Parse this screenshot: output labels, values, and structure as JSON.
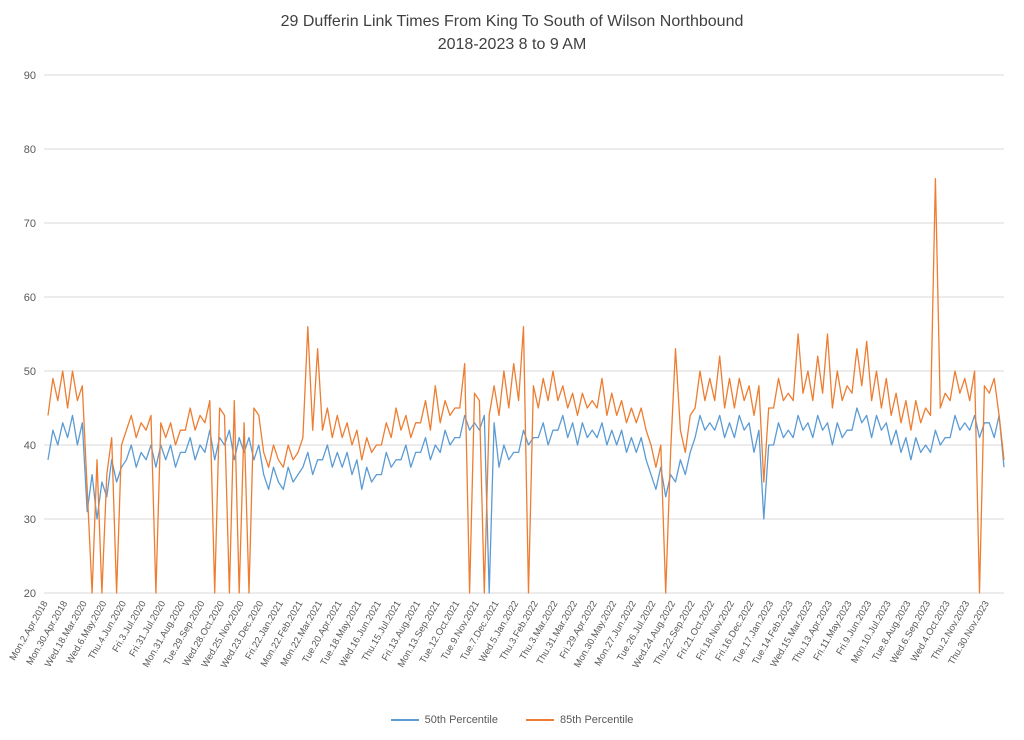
{
  "title": {
    "line1": "29 Dufferin Link Times From King To South of Wilson Northbound",
    "line2": "2018-2023 8 to 9 AM"
  },
  "legend": {
    "items": [
      {
        "label": "50th Percentile",
        "color": "#5B9BD5"
      },
      {
        "label": "85th Percentile",
        "color": "#ED7D31"
      }
    ]
  },
  "chart_data": {
    "type": "line",
    "title": "29 Dufferin Link Times From King To South of Wilson Northbound",
    "subtitle": "2018-2023 8 to 9 AM",
    "xlabel": "",
    "ylabel": "",
    "ylim": [
      20,
      90
    ],
    "yticks": [
      20,
      30,
      40,
      50,
      60,
      70,
      80,
      90
    ],
    "grid": true,
    "legend_position": "bottom",
    "points_per_tick": 4,
    "tick_labels": [
      "Mon.2.Apr.2018",
      "Mon.30.Apr.2018",
      "Wed.18.Mar.2020",
      "Wed.6.May.2020",
      "Thu.4.Jun.2020",
      "Fri.3.Jul.2020",
      "Fri.31.Jul.2020",
      "Mon.31.Aug.2020",
      "Tue.29.Sep.2020",
      "Wed.28.Oct.2020",
      "Wed.25.Nov.2020",
      "Wed.23.Dec.2020",
      "Fri.22.Jan.2021",
      "Mon.22.Feb.2021",
      "Mon.22.Mar.2021",
      "Tue.20.Apr.2021",
      "Tue.18.May.2021",
      "Wed.16.Jun.2021",
      "Thu.15.Jul.2021",
      "Fri.13.Aug.2021",
      "Mon.13.Sep.2021",
      "Tue.12.Oct.2021",
      "Tue.9.Nov.2021",
      "Tue.7.Dec.2021",
      "Wed.5.Jan.2022",
      "Thu.3.Feb.2022",
      "Thu.3.Mar.2022",
      "Thu.31.Mar.2022",
      "Fri.29.Apr.2022",
      "Mon.30.May.2022",
      "Mon.27.Jun.2022",
      "Tue.26.Jul.2022",
      "Wed.24.Aug.2022",
      "Thu.22.Sep.2022",
      "Fri.21.Oct.2022",
      "Fri.18.Nov.2022",
      "Fri.16.Dec.2022",
      "Tue.17.Jan.2023",
      "Tue.14.Feb.2023",
      "Wed.15.Mar.2023",
      "Thu.13.Apr.2023",
      "Fri.11.May.2023",
      "Fri.9.Jun.2023",
      "Mon.10.Jul.2023",
      "Tue.8.Aug.2023",
      "Wed.6.Sep.2023",
      "Wed.4.Oct.2023",
      "Thu.2.Nov.2023",
      "Thu.30.Nov.2023"
    ],
    "series": [
      {
        "name": "50th Percentile",
        "color": "#5B9BD5",
        "values": [
          38,
          42,
          40,
          43,
          41,
          44,
          40,
          43,
          31,
          36,
          30,
          35,
          33,
          38,
          35,
          37,
          38,
          40,
          37,
          39,
          38,
          40,
          37,
          40,
          38,
          40,
          37,
          39,
          39,
          41,
          38,
          40,
          39,
          42,
          38,
          41,
          40,
          42,
          38,
          41,
          39,
          41,
          38,
          40,
          36,
          34,
          37,
          35,
          34,
          37,
          35,
          36,
          37,
          39,
          36,
          38,
          38,
          40,
          37,
          39,
          37,
          39,
          36,
          38,
          34,
          37,
          35,
          36,
          36,
          39,
          37,
          38,
          38,
          40,
          37,
          39,
          39,
          41,
          38,
          40,
          39,
          42,
          40,
          41,
          41,
          44,
          42,
          43,
          42,
          44,
          20,
          43,
          37,
          40,
          38,
          39,
          39,
          42,
          40,
          41,
          41,
          43,
          40,
          42,
          42,
          44,
          41,
          43,
          40,
          43,
          41,
          42,
          41,
          43,
          40,
          42,
          40,
          42,
          39,
          41,
          39,
          41,
          38,
          36,
          34,
          37,
          33,
          36,
          35,
          38,
          36,
          39,
          41,
          44,
          42,
          43,
          42,
          44,
          41,
          43,
          41,
          44,
          42,
          43,
          39,
          42,
          30,
          40,
          40,
          43,
          41,
          42,
          41,
          44,
          42,
          43,
          41,
          44,
          42,
          43,
          40,
          43,
          41,
          42,
          42,
          45,
          43,
          44,
          41,
          44,
          42,
          43,
          40,
          42,
          39,
          41,
          38,
          41,
          39,
          40,
          39,
          42,
          40,
          41,
          41,
          44,
          42,
          43,
          42,
          44,
          41,
          43,
          43,
          41,
          44,
          37
        ]
      },
      {
        "name": "85th Percentile",
        "color": "#ED7D31",
        "values": [
          44,
          49,
          46,
          50,
          45,
          50,
          46,
          48,
          34,
          20,
          38,
          20,
          36,
          41,
          20,
          40,
          42,
          44,
          41,
          43,
          42,
          44,
          20,
          43,
          41,
          43,
          40,
          42,
          42,
          45,
          42,
          44,
          43,
          46,
          20,
          45,
          44,
          20,
          46,
          20,
          43,
          20,
          45,
          44,
          39,
          37,
          40,
          38,
          37,
          40,
          38,
          39,
          41,
          56,
          42,
          53,
          42,
          45,
          41,
          44,
          41,
          43,
          40,
          42,
          38,
          41,
          39,
          40,
          40,
          43,
          41,
          45,
          42,
          44,
          41,
          43,
          43,
          46,
          42,
          48,
          43,
          46,
          44,
          45,
          45,
          51,
          20,
          47,
          46,
          20,
          44,
          48,
          44,
          50,
          45,
          51,
          46,
          56,
          20,
          48,
          45,
          49,
          46,
          50,
          46,
          48,
          45,
          47,
          44,
          47,
          45,
          46,
          45,
          49,
          44,
          47,
          44,
          46,
          43,
          45,
          43,
          45,
          42,
          40,
          37,
          40,
          20,
          39,
          53,
          42,
          39,
          44,
          45,
          50,
          46,
          49,
          46,
          52,
          45,
          49,
          45,
          49,
          46,
          48,
          44,
          48,
          35,
          45,
          45,
          49,
          46,
          47,
          46,
          55,
          47,
          50,
          46,
          52,
          47,
          55,
          45,
          50,
          46,
          48,
          47,
          53,
          48,
          54,
          46,
          50,
          45,
          49,
          44,
          47,
          43,
          46,
          42,
          46,
          43,
          45,
          44,
          76,
          45,
          47,
          46,
          50,
          47,
          49,
          46,
          50,
          20,
          48,
          47,
          49,
          44,
          38
        ]
      }
    ]
  }
}
